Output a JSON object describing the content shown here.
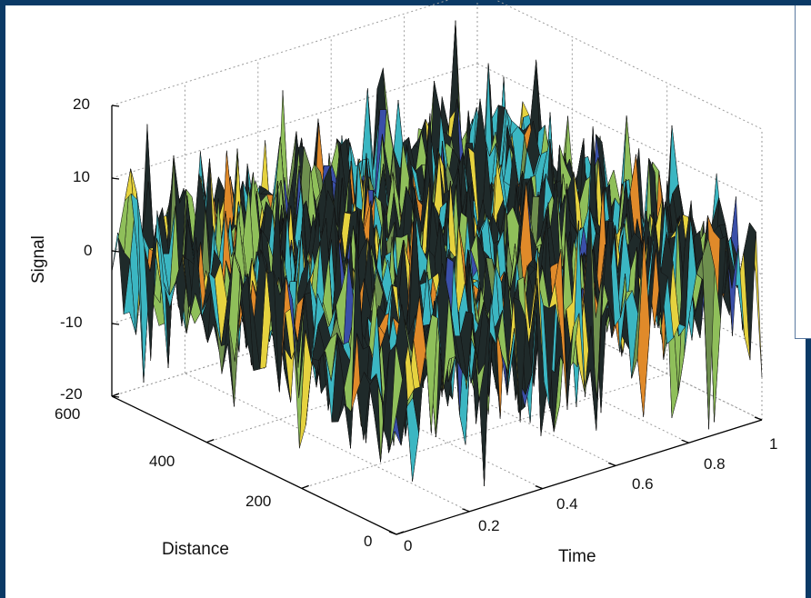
{
  "chart_data": {
    "type": "surface",
    "title": "",
    "zlabel": "Signal",
    "xlabel": "Distance",
    "ylabel": "Time",
    "zlim": [
      -20,
      20
    ],
    "xlim": [
      0,
      600
    ],
    "ylim": [
      0,
      1
    ],
    "z_ticks": [
      "20",
      "10",
      "0",
      "-10",
      "-20"
    ],
    "x_ticks": [
      "600",
      "400",
      "200",
      "0"
    ],
    "y_ticks": [
      "0",
      "0.2",
      "0.4",
      "0.6",
      "0.8",
      "1"
    ],
    "grid": true,
    "colormap": [
      "#1f2a2a",
      "#3bb6c2",
      "#8fbf5a",
      "#e5d23f",
      "#e08a2a",
      "#3a4fa8",
      "#6e8f4e"
    ],
    "noise_amplitude_approx": 10
  }
}
